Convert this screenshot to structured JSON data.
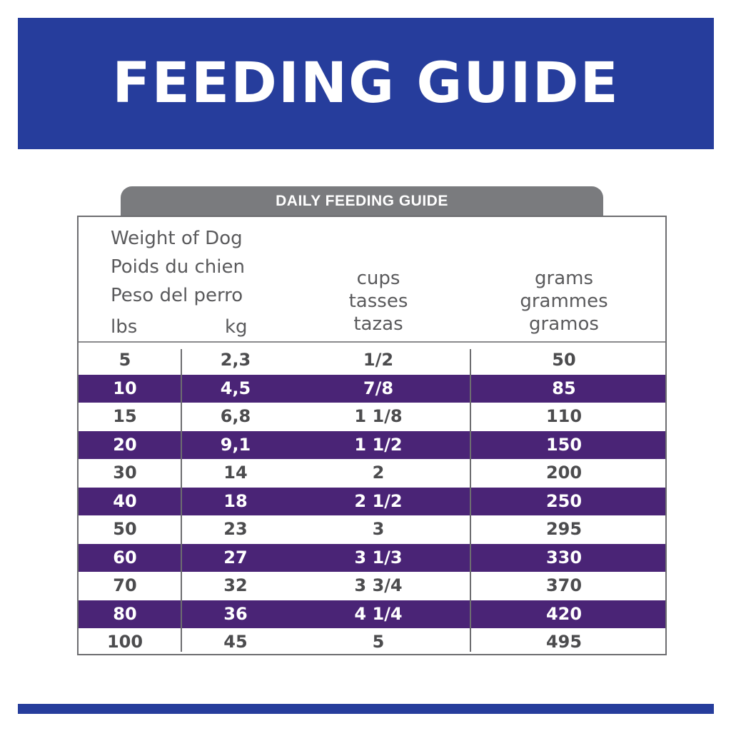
{
  "banner": {
    "title": "FEEDING GUIDE"
  },
  "tab": {
    "label": "DAILY FEEDING GUIDE"
  },
  "header": {
    "weight_lines": [
      "Weight of Dog",
      "Poids du chien",
      "Peso del perro"
    ],
    "lbs_label": "lbs",
    "kg_label": "kg",
    "cups_lines": [
      "cups",
      "tasses",
      "tazas"
    ],
    "grams_lines": [
      "grams",
      "grammes",
      "gramos"
    ]
  },
  "rows": [
    {
      "lbs": "5",
      "kg": "2,3",
      "cups": "1/2",
      "grams": "50"
    },
    {
      "lbs": "10",
      "kg": "4,5",
      "cups": "7/8",
      "grams": "85"
    },
    {
      "lbs": "15",
      "kg": "6,8",
      "cups": "1 1/8",
      "grams": "110"
    },
    {
      "lbs": "20",
      "kg": "9,1",
      "cups": "1 1/2",
      "grams": "150"
    },
    {
      "lbs": "30",
      "kg": "14",
      "cups": "2",
      "grams": "200"
    },
    {
      "lbs": "40",
      "kg": "18",
      "cups": "2 1/2",
      "grams": "250"
    },
    {
      "lbs": "50",
      "kg": "23",
      "cups": "3",
      "grams": "295"
    },
    {
      "lbs": "60",
      "kg": "27",
      "cups": "3 1/3",
      "grams": "330"
    },
    {
      "lbs": "70",
      "kg": "32",
      "cups": "3 3/4",
      "grams": "370"
    },
    {
      "lbs": "80",
      "kg": "36",
      "cups": "4 1/4",
      "grams": "420"
    },
    {
      "lbs": "100",
      "kg": "45",
      "cups": "5",
      "grams": "495"
    }
  ],
  "colors": {
    "banner": "#263d9c",
    "tab": "#7a7b7e",
    "dark_row": "#4a2476"
  }
}
